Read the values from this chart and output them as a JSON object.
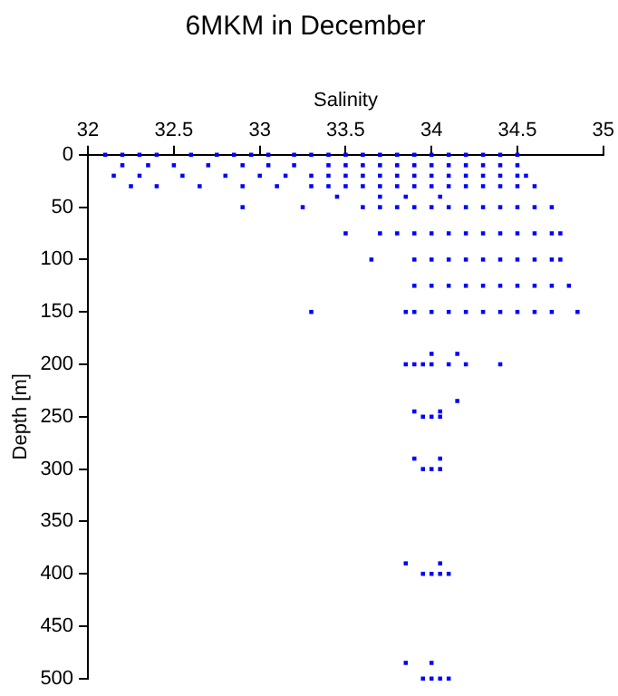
{
  "chart_data": {
    "type": "scatter",
    "title": "6MKM in December",
    "xlabel": "Salinity",
    "ylabel": "Depth [m]",
    "xlim": [
      32,
      35
    ],
    "xticks": [
      32,
      32.5,
      33,
      33.5,
      34,
      34.5,
      35
    ],
    "ylim": [
      500,
      0
    ],
    "yticks": [
      0,
      50,
      100,
      150,
      200,
      250,
      300,
      350,
      400,
      450,
      500
    ],
    "grid": false,
    "legend": false,
    "marker": "square",
    "series": [
      {
        "color": "#0000ff",
        "x": [
          32.1,
          32.2,
          32.3,
          32.4,
          32.6,
          32.75,
          32.85,
          32.95,
          33.05,
          33.2,
          33.3,
          33.4,
          33.5,
          33.6,
          33.7,
          33.8,
          33.9,
          34,
          34.1,
          34.2,
          34.3,
          34.4,
          34.5,
          32.2,
          32.35,
          32.5,
          32.7,
          32.9,
          33.05,
          33.2,
          33.4,
          33.5,
          33.6,
          33.7,
          33.8,
          33.9,
          34,
          34.1,
          34.2,
          34.3,
          34.4,
          34.5,
          32.15,
          32.3,
          32.55,
          32.8,
          33,
          33.15,
          33.3,
          33.4,
          33.5,
          33.6,
          33.7,
          33.8,
          33.9,
          34,
          34.1,
          34.2,
          34.3,
          34.4,
          34.5,
          34.55,
          32.25,
          32.4,
          32.65,
          32.9,
          33.1,
          33.3,
          33.4,
          33.5,
          33.6,
          33.7,
          33.8,
          33.9,
          34,
          34.1,
          34.2,
          34.3,
          34.4,
          34.5,
          34.6,
          33.45,
          33.7,
          33.85,
          34.05,
          32.9,
          33.25,
          33.6,
          33.7,
          33.8,
          33.9,
          34,
          34.1,
          34.2,
          34.3,
          34.4,
          34.5,
          34.6,
          34.7,
          33.5,
          33.7,
          33.8,
          33.9,
          34,
          34.1,
          34.2,
          34.3,
          34.4,
          34.5,
          34.6,
          34.7,
          34.75,
          33.65,
          33.9,
          34,
          34.1,
          34.2,
          34.3,
          34.4,
          34.5,
          34.6,
          34.7,
          34.75,
          33.9,
          34,
          34.1,
          34.2,
          34.3,
          34.4,
          34.5,
          34.6,
          34.7,
          34.8,
          33.3,
          33.85,
          33.9,
          34,
          34.1,
          34.2,
          34.3,
          34.4,
          34.5,
          34.6,
          34.7,
          34.85,
          34,
          34.15,
          33.85,
          33.9,
          33.95,
          34,
          34.1,
          34.2,
          34.4,
          34.15,
          33.9,
          34.05,
          33.95,
          34,
          34.05,
          33.9,
          34.05,
          33.95,
          34,
          34.05,
          33.85,
          34.05,
          33.95,
          34,
          34.05,
          34.1,
          33.85,
          34,
          33.95,
          34,
          34.05,
          34.1
        ],
        "values": [
          0,
          0,
          0,
          0,
          0,
          0,
          0,
          0,
          0,
          0,
          0,
          0,
          0,
          0,
          0,
          0,
          0,
          0,
          0,
          0,
          0,
          0,
          0,
          10,
          10,
          10,
          10,
          10,
          10,
          10,
          10,
          10,
          10,
          10,
          10,
          10,
          10,
          10,
          10,
          10,
          10,
          10,
          20,
          20,
          20,
          20,
          20,
          20,
          20,
          20,
          20,
          20,
          20,
          20,
          20,
          20,
          20,
          20,
          20,
          20,
          20,
          20,
          30,
          30,
          30,
          30,
          30,
          30,
          30,
          30,
          30,
          30,
          30,
          30,
          30,
          30,
          30,
          30,
          30,
          30,
          30,
          40,
          40,
          40,
          40,
          50,
          50,
          50,
          50,
          50,
          50,
          50,
          50,
          50,
          50,
          50,
          50,
          50,
          50,
          75,
          75,
          75,
          75,
          75,
          75,
          75,
          75,
          75,
          75,
          75,
          75,
          75,
          100,
          100,
          100,
          100,
          100,
          100,
          100,
          100,
          100,
          100,
          100,
          125,
          125,
          125,
          125,
          125,
          125,
          125,
          125,
          125,
          125,
          150,
          150,
          150,
          150,
          150,
          150,
          150,
          150,
          150,
          150,
          150,
          150,
          190,
          190,
          200,
          200,
          200,
          200,
          200,
          200,
          200,
          235,
          245,
          245,
          250,
          250,
          250,
          290,
          290,
          300,
          300,
          300,
          390,
          390,
          400,
          400,
          400,
          400,
          485,
          485,
          500,
          500,
          500,
          500
        ]
      }
    ]
  }
}
